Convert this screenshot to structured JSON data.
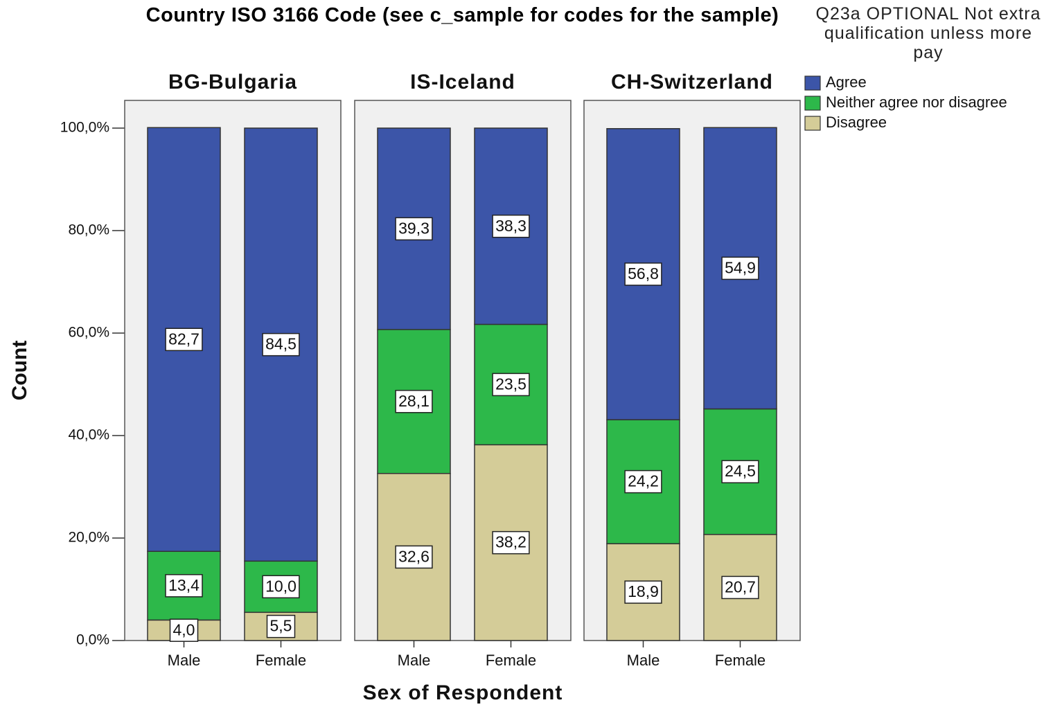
{
  "chart_data": {
    "type": "bar",
    "stacked": true,
    "title": "Country ISO 3166 Code (see c_sample for codes for the sample)",
    "legend_title": "Q23a OPTIONAL Not extra qualification unless more pay",
    "y_label": "Count",
    "x_label": "Sex of Respondent",
    "panels": [
      "BG-Bulgaria",
      "IS-Iceland",
      "CH-Switzerland"
    ],
    "categories": [
      "Male",
      "Female"
    ],
    "series": [
      {
        "name": "Disagree",
        "color": "#d4cc98",
        "values": [
          [
            4.0,
            5.5
          ],
          [
            32.6,
            38.2
          ],
          [
            18.9,
            20.7
          ]
        ],
        "value_labels": [
          [
            "4,0",
            "5,5"
          ],
          [
            "32,6",
            "38,2"
          ],
          [
            "18,9",
            "20,7"
          ]
        ]
      },
      {
        "name": "Neither agree nor disagree",
        "color": "#2db84a",
        "values": [
          [
            13.4,
            10.0
          ],
          [
            28.1,
            23.5
          ],
          [
            24.2,
            24.5
          ]
        ],
        "value_labels": [
          [
            "13,4",
            "10,0"
          ],
          [
            "28,1",
            "23,5"
          ],
          [
            "24,2",
            "24,5"
          ]
        ]
      },
      {
        "name": "Agree",
        "color": "#3c55a8",
        "values": [
          [
            82.7,
            84.5
          ],
          [
            39.3,
            38.3
          ],
          [
            56.8,
            54.9
          ]
        ],
        "value_labels": [
          [
            "82,7",
            "84,5"
          ],
          [
            "39,3",
            "38,3"
          ],
          [
            "56,8",
            "54,9"
          ]
        ]
      }
    ],
    "ylim": [
      0,
      100
    ],
    "yticks": [
      {
        "value": 0,
        "label": "0,0%"
      },
      {
        "value": 20,
        "label": "20,0%"
      },
      {
        "value": 40,
        "label": "40,0%"
      },
      {
        "value": 60,
        "label": "60,0%"
      },
      {
        "value": 80,
        "label": "80,0%"
      },
      {
        "value": 100,
        "label": "100,0%"
      }
    ]
  }
}
